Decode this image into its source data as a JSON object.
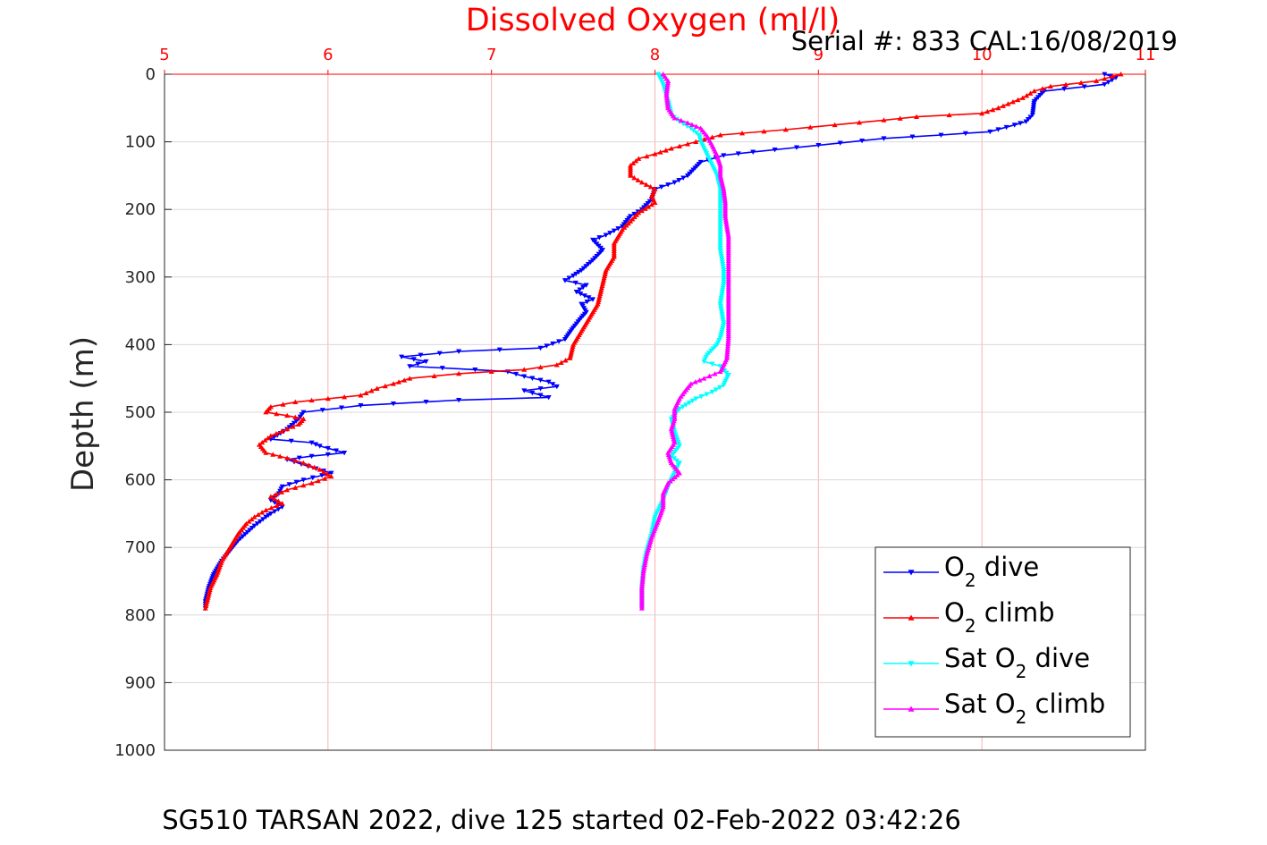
{
  "chart_data": {
    "type": "line",
    "title": "Dissolved Oxygen (ml/l)",
    "serial_text": "Serial #: 833  CAL:16/08/2019",
    "footer_text": "SG510 TARSAN 2022, dive 125 started 02-Feb-2022 03:42:26",
    "xlabel": "Dissolved Oxygen (ml/l)",
    "ylabel": "Depth (m)",
    "xlim": [
      5,
      11
    ],
    "ylim": [
      0,
      1000
    ],
    "y_reversed": true,
    "x_axis_position": "top",
    "xticks": [
      5,
      6,
      7,
      8,
      9,
      10,
      11
    ],
    "yticks": [
      0,
      100,
      200,
      300,
      400,
      500,
      600,
      700,
      800,
      900,
      1000
    ],
    "grid": true,
    "legend_position": "bottom-right",
    "colors": {
      "o2_dive": "#0000ff",
      "o2_climb": "#ff0000",
      "sat_dive": "#00ffff",
      "sat_climb": "#ff00ff",
      "x_axis": "#ff0000",
      "xgrid": "#ffb0b0",
      "ygrid": "#d8d8d8"
    },
    "series": [
      {
        "name": "O2 dive",
        "legend_main": "O",
        "legend_sub": "2",
        "legend_rest": " dive",
        "color": "#0000ff",
        "marker": "down-triangle",
        "points": [
          [
            10.75,
            0
          ],
          [
            10.82,
            5
          ],
          [
            10.75,
            15
          ],
          [
            10.38,
            25
          ],
          [
            10.32,
            40
          ],
          [
            10.31,
            60
          ],
          [
            10.27,
            70
          ],
          [
            10.2,
            75
          ],
          [
            10.05,
            85
          ],
          [
            9.75,
            90
          ],
          [
            9.4,
            95
          ],
          [
            9.0,
            105
          ],
          [
            8.6,
            115
          ],
          [
            8.42,
            120
          ],
          [
            8.28,
            130
          ],
          [
            8.2,
            150
          ],
          [
            8.12,
            160
          ],
          [
            8.0,
            170
          ],
          [
            7.98,
            185
          ],
          [
            7.92,
            200
          ],
          [
            7.85,
            210
          ],
          [
            7.8,
            225
          ],
          [
            7.7,
            238
          ],
          [
            7.62,
            245
          ],
          [
            7.68,
            260
          ],
          [
            7.62,
            275
          ],
          [
            7.55,
            290
          ],
          [
            7.5,
            298
          ],
          [
            7.45,
            305
          ],
          [
            7.58,
            312
          ],
          [
            7.52,
            322
          ],
          [
            7.62,
            333
          ],
          [
            7.55,
            340
          ],
          [
            7.58,
            352
          ],
          [
            7.55,
            360
          ],
          [
            7.5,
            375
          ],
          [
            7.45,
            392
          ],
          [
            7.3,
            405
          ],
          [
            6.8,
            410
          ],
          [
            6.45,
            418
          ],
          [
            6.6,
            425
          ],
          [
            6.5,
            432
          ],
          [
            6.9,
            437
          ],
          [
            7.1,
            440
          ],
          [
            7.2,
            447
          ],
          [
            7.35,
            455
          ],
          [
            7.4,
            462
          ],
          [
            7.2,
            468
          ],
          [
            7.35,
            478
          ],
          [
            6.8,
            482
          ],
          [
            6.2,
            490
          ],
          [
            5.85,
            500
          ],
          [
            5.82,
            510
          ],
          [
            5.75,
            525
          ],
          [
            5.65,
            540
          ],
          [
            5.9,
            545
          ],
          [
            5.95,
            550
          ],
          [
            6.1,
            560
          ],
          [
            5.9,
            565
          ],
          [
            5.75,
            570
          ],
          [
            5.88,
            580
          ],
          [
            6.02,
            590
          ],
          [
            5.85,
            600
          ],
          [
            5.72,
            610
          ],
          [
            5.7,
            620
          ],
          [
            5.65,
            630
          ],
          [
            5.72,
            640
          ],
          [
            5.65,
            650
          ],
          [
            5.62,
            655
          ],
          [
            5.55,
            668
          ],
          [
            5.45,
            690
          ],
          [
            5.4,
            705
          ],
          [
            5.35,
            720
          ],
          [
            5.3,
            740
          ],
          [
            5.27,
            760
          ],
          [
            5.25,
            780
          ],
          [
            5.25,
            790
          ]
        ]
      },
      {
        "name": "O2 climb",
        "legend_main": "O",
        "legend_sub": "2",
        "legend_rest": " climb",
        "color": "#ff0000",
        "marker": "up-triangle",
        "points": [
          [
            10.85,
            0
          ],
          [
            10.7,
            10
          ],
          [
            10.42,
            18
          ],
          [
            10.32,
            25
          ],
          [
            10.25,
            35
          ],
          [
            10.1,
            50
          ],
          [
            10.0,
            58
          ],
          [
            9.6,
            63
          ],
          [
            9.4,
            68
          ],
          [
            9.1,
            75
          ],
          [
            8.8,
            82
          ],
          [
            8.4,
            90
          ],
          [
            8.25,
            100
          ],
          [
            8.1,
            110
          ],
          [
            8.0,
            118
          ],
          [
            7.9,
            125
          ],
          [
            7.85,
            135
          ],
          [
            7.85,
            150
          ],
          [
            7.92,
            160
          ],
          [
            8.0,
            170
          ],
          [
            7.98,
            180
          ],
          [
            8.0,
            190
          ],
          [
            7.9,
            205
          ],
          [
            7.8,
            230
          ],
          [
            7.75,
            250
          ],
          [
            7.75,
            270
          ],
          [
            7.7,
            290
          ],
          [
            7.68,
            310
          ],
          [
            7.65,
            340
          ],
          [
            7.6,
            360
          ],
          [
            7.55,
            380
          ],
          [
            7.5,
            400
          ],
          [
            7.48,
            420
          ],
          [
            7.4,
            430
          ],
          [
            7.2,
            437
          ],
          [
            6.8,
            443
          ],
          [
            6.5,
            450
          ],
          [
            6.4,
            458
          ],
          [
            6.3,
            465
          ],
          [
            6.2,
            475
          ],
          [
            6.0,
            480
          ],
          [
            5.8,
            485
          ],
          [
            5.65,
            492
          ],
          [
            5.62,
            500
          ],
          [
            5.75,
            505
          ],
          [
            5.85,
            510
          ],
          [
            5.82,
            518
          ],
          [
            5.75,
            525
          ],
          [
            5.65,
            535
          ],
          [
            5.58,
            548
          ],
          [
            5.62,
            560
          ],
          [
            5.75,
            568
          ],
          [
            5.85,
            575
          ],
          [
            5.95,
            585
          ],
          [
            6.02,
            595
          ],
          [
            5.9,
            605
          ],
          [
            5.75,
            615
          ],
          [
            5.65,
            625
          ],
          [
            5.72,
            635
          ],
          [
            5.62,
            645
          ],
          [
            5.55,
            655
          ],
          [
            5.5,
            665
          ],
          [
            5.45,
            680
          ],
          [
            5.4,
            700
          ],
          [
            5.35,
            720
          ],
          [
            5.32,
            740
          ],
          [
            5.28,
            760
          ],
          [
            5.26,
            780
          ],
          [
            5.25,
            790
          ]
        ]
      },
      {
        "name": "Sat O2 dive",
        "legend_main": "Sat O",
        "legend_sub": "2",
        "legend_rest": " dive",
        "color": "#00ffff",
        "marker": "down-triangle",
        "points": [
          [
            8.02,
            0
          ],
          [
            8.05,
            15
          ],
          [
            8.08,
            40
          ],
          [
            8.1,
            60
          ],
          [
            8.15,
            70
          ],
          [
            8.22,
            80
          ],
          [
            8.27,
            90
          ],
          [
            8.28,
            100
          ],
          [
            8.32,
            120
          ],
          [
            8.35,
            135
          ],
          [
            8.38,
            150
          ],
          [
            8.4,
            170
          ],
          [
            8.4,
            200
          ],
          [
            8.4,
            230
          ],
          [
            8.4,
            260
          ],
          [
            8.42,
            290
          ],
          [
            8.42,
            310
          ],
          [
            8.4,
            340
          ],
          [
            8.42,
            370
          ],
          [
            8.4,
            390
          ],
          [
            8.38,
            400
          ],
          [
            8.32,
            415
          ],
          [
            8.3,
            425
          ],
          [
            8.4,
            432
          ],
          [
            8.45,
            445
          ],
          [
            8.42,
            460
          ],
          [
            8.35,
            470
          ],
          [
            8.25,
            480
          ],
          [
            8.15,
            495
          ],
          [
            8.1,
            510
          ],
          [
            8.12,
            530
          ],
          [
            8.15,
            550
          ],
          [
            8.1,
            565
          ],
          [
            8.15,
            575
          ],
          [
            8.12,
            590
          ],
          [
            8.08,
            610
          ],
          [
            8.05,
            630
          ],
          [
            8.0,
            655
          ],
          [
            7.98,
            680
          ],
          [
            7.95,
            705
          ],
          [
            7.93,
            730
          ],
          [
            7.92,
            760
          ],
          [
            7.92,
            790
          ]
        ]
      },
      {
        "name": "Sat O2 climb",
        "legend_main": "Sat O",
        "legend_sub": "2",
        "legend_rest": " climb",
        "color": "#ff00ff",
        "marker": "up-triangle",
        "points": [
          [
            8.05,
            0
          ],
          [
            8.08,
            10
          ],
          [
            8.07,
            30
          ],
          [
            8.08,
            50
          ],
          [
            8.12,
            65
          ],
          [
            8.2,
            72
          ],
          [
            8.28,
            80
          ],
          [
            8.32,
            92
          ],
          [
            8.35,
            105
          ],
          [
            8.38,
            120
          ],
          [
            8.4,
            135
          ],
          [
            8.4,
            150
          ],
          [
            8.42,
            170
          ],
          [
            8.43,
            190
          ],
          [
            8.43,
            210
          ],
          [
            8.45,
            240
          ],
          [
            8.45,
            270
          ],
          [
            8.45,
            300
          ],
          [
            8.45,
            330
          ],
          [
            8.45,
            360
          ],
          [
            8.45,
            390
          ],
          [
            8.44,
            420
          ],
          [
            8.4,
            440
          ],
          [
            8.3,
            450
          ],
          [
            8.22,
            458
          ],
          [
            8.18,
            470
          ],
          [
            8.15,
            480
          ],
          [
            8.12,
            495
          ],
          [
            8.12,
            510
          ],
          [
            8.1,
            525
          ],
          [
            8.12,
            545
          ],
          [
            8.08,
            560
          ],
          [
            8.1,
            575
          ],
          [
            8.15,
            590
          ],
          [
            8.08,
            605
          ],
          [
            8.05,
            620
          ],
          [
            8.05,
            640
          ],
          [
            8.02,
            660
          ],
          [
            7.98,
            685
          ],
          [
            7.95,
            710
          ],
          [
            7.93,
            735
          ],
          [
            7.92,
            760
          ],
          [
            7.92,
            790
          ]
        ]
      }
    ]
  }
}
